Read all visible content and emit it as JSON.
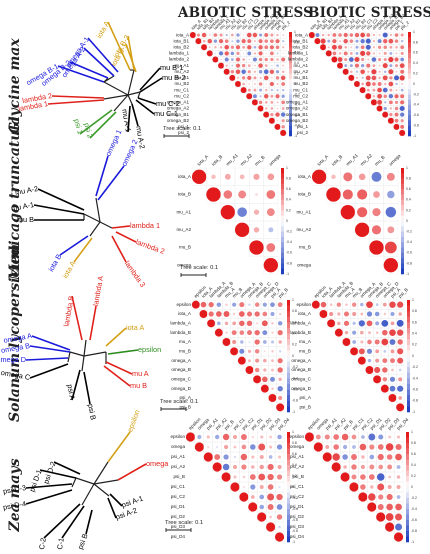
{
  "headers": {
    "abiotic": "ABIOTIC STRESS",
    "biotic": "BIOTIC STRESS"
  },
  "tree_scale_label": "Tree scale: 0.1",
  "species": [
    "Glycine max",
    "Medicago truncatula",
    "Solanum lycopersicum",
    "Zea mays"
  ],
  "colors": {
    "omega": "#1a1adc",
    "iota": "#d4a017",
    "mu": "#000000",
    "lambda": "#e0211b",
    "psi": "#3a9a2a",
    "epsilon": "#2e8b1f",
    "corr_pos": "#e31a1c",
    "corr_neg": "#1f3fbf"
  },
  "trees": [
    {
      "species": "Glycine max",
      "leaves": [
        {
          "label": "omega A-1",
          "color": "omega"
        },
        {
          "label": "omega A-2",
          "color": "omega"
        },
        {
          "label": "omega B-2",
          "color": "omega"
        },
        {
          "label": "omega B-1",
          "color": "omega"
        },
        {
          "label": "iota A",
          "color": "iota"
        },
        {
          "label": "iota B-2",
          "color": "iota"
        },
        {
          "label": "iota B-1",
          "color": "iota"
        },
        {
          "label": "mu B-1",
          "color": "mu"
        },
        {
          "label": "mu B-2",
          "color": "mu"
        },
        {
          "label": "mu C-2",
          "color": "mu"
        },
        {
          "label": "mu C-1",
          "color": "mu"
        },
        {
          "label": "mu A-2",
          "color": "mu"
        },
        {
          "label": "mu A-1",
          "color": "mu"
        },
        {
          "label": "lambda 2",
          "color": "lambda"
        },
        {
          "label": "lambda 1",
          "color": "lambda"
        },
        {
          "label": "psi 1",
          "color": "psi"
        },
        {
          "label": "psi 2",
          "color": "psi"
        }
      ]
    },
    {
      "species": "Medicago truncatula",
      "leaves": [
        {
          "label": "omega 1",
          "color": "omega"
        },
        {
          "label": "omega 2",
          "color": "omega"
        },
        {
          "label": "mu A-2",
          "color": "mu"
        },
        {
          "label": "mu A-1",
          "color": "mu"
        },
        {
          "label": "mu B",
          "color": "mu"
        },
        {
          "label": "lambda 1",
          "color": "lambda"
        },
        {
          "label": "lambda 2",
          "color": "lambda"
        },
        {
          "label": "lambda 3",
          "color": "lambda"
        },
        {
          "label": "iota B",
          "color": "omega"
        },
        {
          "label": "iota A",
          "color": "iota"
        }
      ]
    },
    {
      "species": "Solanum lycopersicum",
      "leaves": [
        {
          "label": "lambda B",
          "color": "lambda"
        },
        {
          "label": "lambda A",
          "color": "lambda"
        },
        {
          "label": "omega A",
          "color": "omega"
        },
        {
          "label": "omega B",
          "color": "omega"
        },
        {
          "label": "omega D",
          "color": "omega"
        },
        {
          "label": "omega C",
          "color": "mu"
        },
        {
          "label": "iota A",
          "color": "iota"
        },
        {
          "label": "epsilon",
          "color": "epsilon"
        },
        {
          "label": "mu A",
          "color": "lambda"
        },
        {
          "label": "mu B",
          "color": "lambda"
        },
        {
          "label": "psi A",
          "color": "mu"
        },
        {
          "label": "psi B",
          "color": "mu"
        }
      ]
    },
    {
      "species": "Zea mays",
      "leaves": [
        {
          "label": "psi D-1",
          "color": "mu"
        },
        {
          "label": "psi D-2",
          "color": "mu"
        },
        {
          "label": "psi D-3",
          "color": "mu"
        },
        {
          "label": "psi D-4",
          "color": "mu"
        },
        {
          "label": "psi C-2",
          "color": "mu"
        },
        {
          "label": "psi C-1",
          "color": "mu"
        },
        {
          "label": "psi B",
          "color": "mu"
        },
        {
          "label": "psi A-2",
          "color": "mu"
        },
        {
          "label": "psi A-1",
          "color": "mu"
        },
        {
          "label": "omega",
          "color": "lambda"
        },
        {
          "label": "epsilon",
          "color": "iota"
        }
      ]
    }
  ],
  "matrices": [
    {
      "species": "Glycine max",
      "labels": [
        "iota_A",
        "iota_B1",
        "iota_B2",
        "lambda_1",
        "lambda_2",
        "mu_A1",
        "mu_A2",
        "mu_B1",
        "mu_B2",
        "mu_C1",
        "mu_C2",
        "omega_A1",
        "omega_A2",
        "omega_B1",
        "omega_B2",
        "psi_1",
        "psi_2"
      ],
      "abiotic_seed": 1,
      "biotic_seed": 2
    },
    {
      "species": "Medicago truncatula",
      "labels": [
        "iota_A",
        "iota_B",
        "mu_A1",
        "mu_A2",
        "mu_B",
        "omega"
      ],
      "abiotic_seed": 3,
      "biotic_seed": 4
    },
    {
      "species": "Solanum lycopersicum",
      "labels": [
        "epsilon",
        "iota_A",
        "lambda_A",
        "lambda_B",
        "mu_A",
        "mu_B",
        "omega_A",
        "omega_B",
        "omega_C",
        "omega_D",
        "psi_A",
        "psi_B"
      ],
      "abiotic_seed": 5,
      "biotic_seed": 6
    },
    {
      "species": "Zea mays",
      "labels": [
        "epsilon",
        "omega",
        "psi_A1",
        "psi_A2",
        "psi_B",
        "psi_C1",
        "psi_C2",
        "psi_D1",
        "psi_D2",
        "psi_D3",
        "psi_D4"
      ],
      "abiotic_seed": 7,
      "biotic_seed": 8
    }
  ],
  "colorbar_ticks": [
    "1",
    "0.8",
    "0.6",
    "0.4",
    "0.2",
    "0",
    "-0.2",
    "-0.4",
    "-0.6",
    "-0.8",
    "-1"
  ]
}
